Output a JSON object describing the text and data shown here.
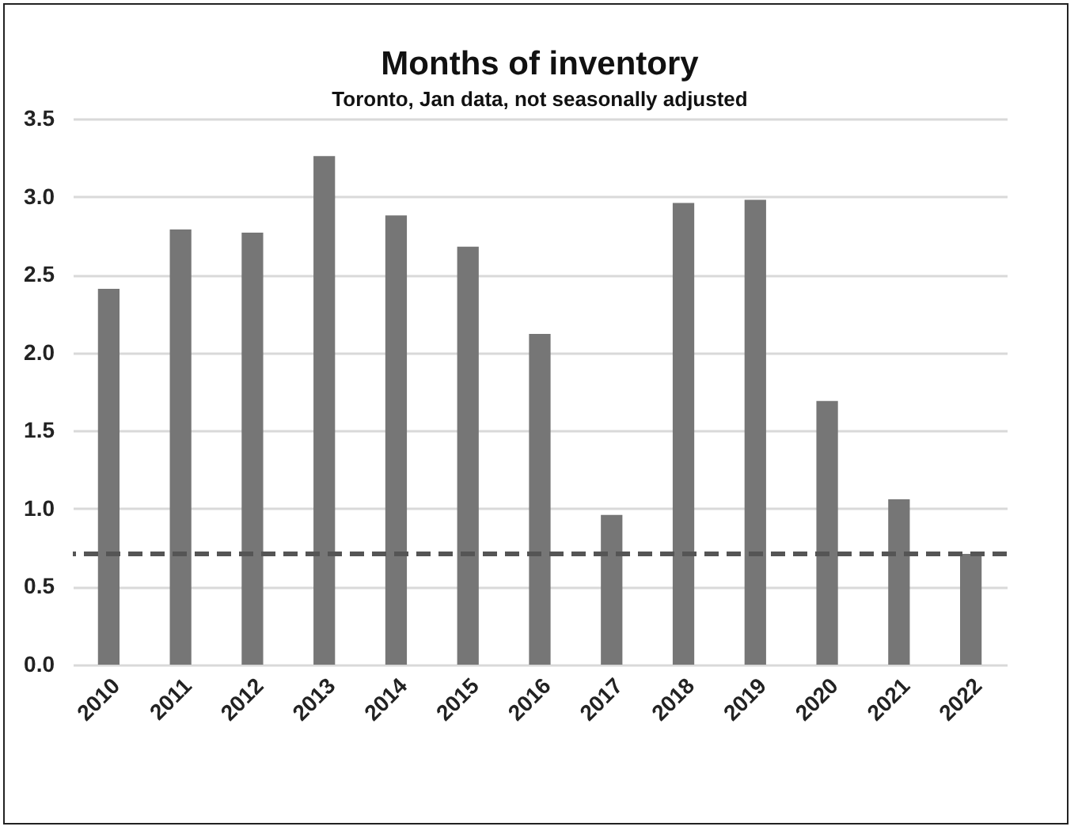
{
  "chart_data": {
    "type": "bar",
    "title": "Months of inventory",
    "subtitle": "Toronto, Jan data, not seasonally adjusted",
    "categories": [
      "2010",
      "2011",
      "2012",
      "2013",
      "2014",
      "2015",
      "2016",
      "2017",
      "2018",
      "2019",
      "2020",
      "2021",
      "2022"
    ],
    "values": [
      2.41,
      2.79,
      2.77,
      3.26,
      2.88,
      2.68,
      2.12,
      0.96,
      2.96,
      2.98,
      1.69,
      1.06,
      0.71
    ],
    "color": "#767676",
    "ylim": [
      0,
      3.5
    ],
    "yticks": [
      {
        "value": 0,
        "label": "0.0"
      },
      0.5,
      {
        "value": 1,
        "label": "1.0"
      },
      1.5,
      {
        "value": 2,
        "label": "2.0"
      },
      2.5,
      {
        "value": 3,
        "label": "3.0"
      },
      3.5
    ],
    "grid": "y",
    "ref_lines": [
      {
        "axis": "y",
        "value": 0.71,
        "color": "#555555",
        "line_style": "dashed"
      }
    ]
  }
}
